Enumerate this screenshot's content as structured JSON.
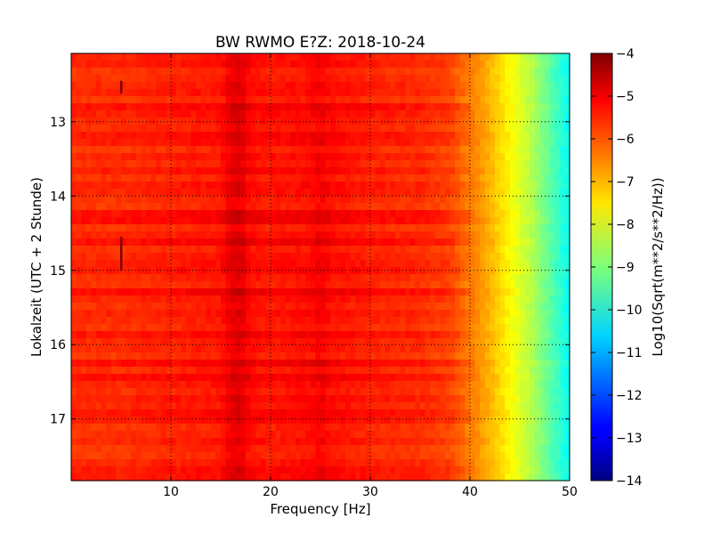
{
  "chart_data": {
    "type": "heatmap",
    "title": "BW RWMO E?Z: 2018-10-24",
    "xlabel": "Frequency [Hz]",
    "ylabel": "Lokalzeit (UTC + 2 Stunde)",
    "colorbar_label": "Log10(Sqrt(m**2/s**2/Hz))",
    "colormap": "jet",
    "xlim": [
      0,
      50
    ],
    "ylim": [
      12.08,
      17.83
    ],
    "y_inverted": true,
    "xticks": [
      10,
      20,
      30,
      40,
      50
    ],
    "yticks": [
      13,
      14,
      15,
      16,
      17
    ],
    "colorbar_range": [
      -14,
      -4
    ],
    "colorbar_ticks": [
      -4,
      -5,
      -6,
      -7,
      -8,
      -9,
      -10,
      -11,
      -12,
      -13,
      -14
    ],
    "grid": true,
    "grid_style": "dotted",
    "spectral_profile": {
      "frequency_hz": [
        0,
        5,
        10,
        15,
        16,
        17,
        18,
        20,
        24,
        25,
        26,
        30,
        35,
        38,
        40,
        42,
        44,
        46,
        48,
        50
      ],
      "log10_amplitude": [
        -5.6,
        -5.6,
        -5.5,
        -5.4,
        -5.0,
        -4.9,
        -5.3,
        -5.4,
        -5.3,
        -5.1,
        -5.3,
        -5.5,
        -5.6,
        -5.8,
        -6.4,
        -7.0,
        -7.7,
        -8.4,
        -9.3,
        -10.2
      ]
    },
    "vertical_features": [
      {
        "frequency_hz": 16.5,
        "description": "dark band near 16-17 Hz"
      },
      {
        "frequency_hz": 25,
        "description": "dark band near 25 Hz"
      },
      {
        "frequency_hz": 5,
        "time_range": [
          12.45,
          12.62
        ],
        "description": "short dark spike"
      },
      {
        "frequency_hz": 5,
        "time_range": [
          14.55,
          15.0
        ],
        "description": "short dark spike"
      }
    ]
  }
}
